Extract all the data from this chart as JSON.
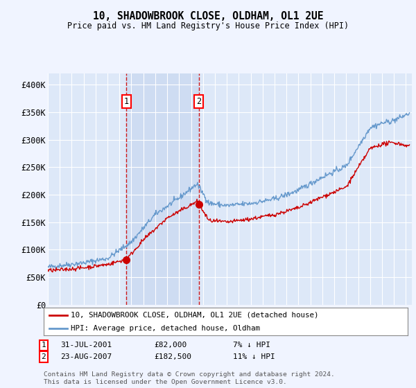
{
  "title": "10, SHADOWBROOK CLOSE, OLDHAM, OL1 2UE",
  "subtitle": "Price paid vs. HM Land Registry's House Price Index (HPI)",
  "ylim": [
    0,
    420000
  ],
  "yticks": [
    0,
    50000,
    100000,
    150000,
    200000,
    250000,
    300000,
    350000,
    400000
  ],
  "ytick_labels": [
    "£0",
    "£50K",
    "£100K",
    "£150K",
    "£200K",
    "£250K",
    "£300K",
    "£350K",
    "£400K"
  ],
  "background_color": "#f0f4ff",
  "plot_bg_color": "#dde8f8",
  "grid_color": "#ffffff",
  "sale_color": "#cc0000",
  "hpi_color": "#6699cc",
  "shade_color": "#c8d8f0",
  "sale1_date": 2001.58,
  "sale1_price": 82000,
  "sale2_date": 2007.65,
  "sale2_price": 182500,
  "legend_sale_label": "10, SHADOWBROOK CLOSE, OLDHAM, OL1 2UE (detached house)",
  "legend_hpi_label": "HPI: Average price, detached house, Oldham",
  "annotation1_label": "1",
  "annotation1_date_str": "31-JUL-2001",
  "annotation1_price_str": "£82,000",
  "annotation1_hpi_str": "7% ↓ HPI",
  "annotation2_label": "2",
  "annotation2_date_str": "23-AUG-2007",
  "annotation2_price_str": "£182,500",
  "annotation2_hpi_str": "11% ↓ HPI",
  "footer": "Contains HM Land Registry data © Crown copyright and database right 2024.\nThis data is licensed under the Open Government Licence v3.0.",
  "xmin": 1995.0,
  "xmax": 2025.5
}
